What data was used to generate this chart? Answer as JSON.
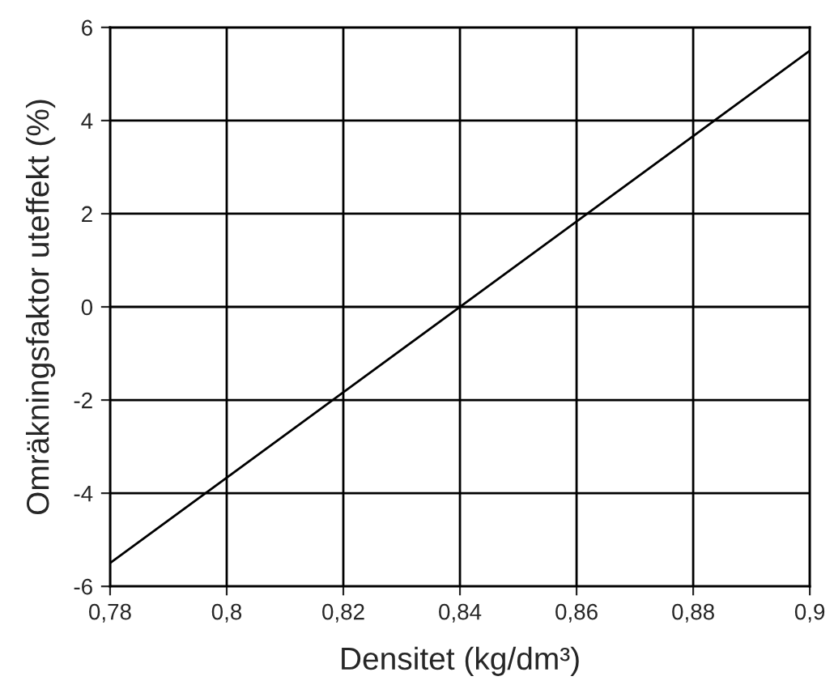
{
  "chart_data": {
    "type": "line",
    "xlabel": "Densitet (kg/dm³)",
    "ylabel": "Omräkningsfaktor uteffekt (%)",
    "x": [
      0.78,
      0.9
    ],
    "series": [
      {
        "color": "#000000",
        "values": [
          -5.5,
          5.5
        ]
      }
    ],
    "xlim": [
      0.78,
      0.9
    ],
    "xticks": [
      {
        "value": 0.78,
        "label": "0,78"
      },
      {
        "value": 0.8,
        "label": "0,8"
      },
      {
        "value": 0.82,
        "label": "0,82"
      },
      {
        "value": 0.84,
        "label": "0,84"
      },
      {
        "value": 0.86,
        "label": "0,86"
      },
      {
        "value": 0.88,
        "label": "0,88"
      },
      {
        "value": 0.9,
        "label": "0,9"
      }
    ],
    "ylim": [
      -6,
      6
    ],
    "yticks": [
      -6,
      -4,
      -2,
      0,
      2,
      4,
      6
    ],
    "grid": true,
    "line_style": "solid"
  }
}
